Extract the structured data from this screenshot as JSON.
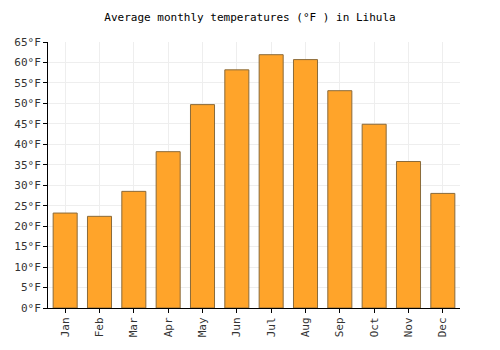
{
  "chart_data": {
    "type": "bar",
    "title": "Average monthly temperatures (°F ) in Lihula",
    "categories": [
      "Jan",
      "Feb",
      "Mar",
      "Apr",
      "May",
      "Jun",
      "Jul",
      "Aug",
      "Sep",
      "Oct",
      "Nov",
      "Dec"
    ],
    "values": [
      23.2,
      22.4,
      28.5,
      38.2,
      49.7,
      58.2,
      61.9,
      60.7,
      53.1,
      44.9,
      35.8,
      28.0
    ],
    "color": "#ffa42a",
    "ylim": [
      0,
      65
    ],
    "yticks": [
      {
        "value": 0,
        "label": "0°F"
      },
      {
        "value": 5,
        "label": "5°F"
      },
      {
        "value": 10,
        "label": "10°F"
      },
      {
        "value": 15,
        "label": "15°F"
      },
      {
        "value": 20,
        "label": "20°F"
      },
      {
        "value": 25,
        "label": "25°F"
      },
      {
        "value": 30,
        "label": "30°F"
      },
      {
        "value": 35,
        "label": "35°F"
      },
      {
        "value": 40,
        "label": "40°F"
      },
      {
        "value": 45,
        "label": "45°F"
      },
      {
        "value": 50,
        "label": "50°F"
      },
      {
        "value": 55,
        "label": "55°F"
      },
      {
        "value": 60,
        "label": "60°F"
      },
      {
        "value": 65,
        "label": "65°F"
      }
    ],
    "grid": true
  }
}
